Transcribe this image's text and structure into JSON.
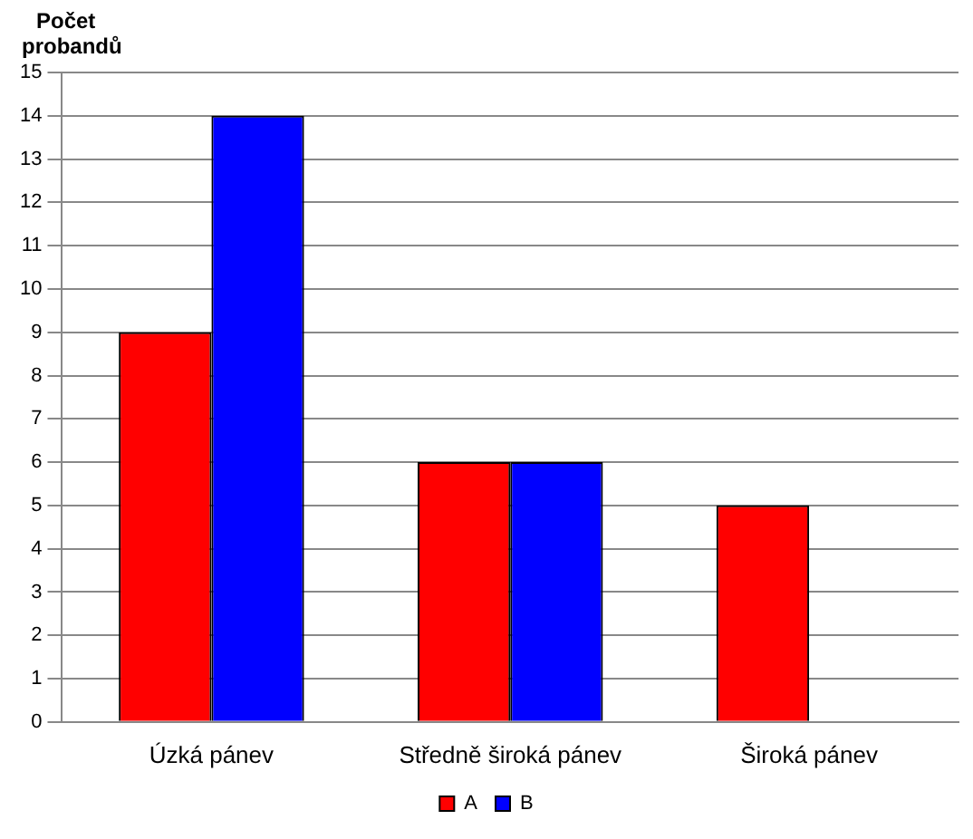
{
  "chart_data": {
    "type": "bar",
    "ylabel": "Počet probandů",
    "categories": [
      "Úzká pánev",
      "Středně široká pánev",
      "Široká pánev"
    ],
    "series": [
      {
        "name": "A",
        "color": "#ff0000",
        "values": [
          9,
          6,
          5
        ]
      },
      {
        "name": "B",
        "color": "#0000ff",
        "values": [
          14,
          6,
          0
        ]
      }
    ],
    "ylim": [
      0,
      15
    ],
    "yticks": [
      0,
      1,
      2,
      3,
      4,
      5,
      6,
      7,
      8,
      9,
      10,
      11,
      12,
      13,
      14,
      15
    ],
    "grid": "y",
    "legend": "bottom"
  }
}
